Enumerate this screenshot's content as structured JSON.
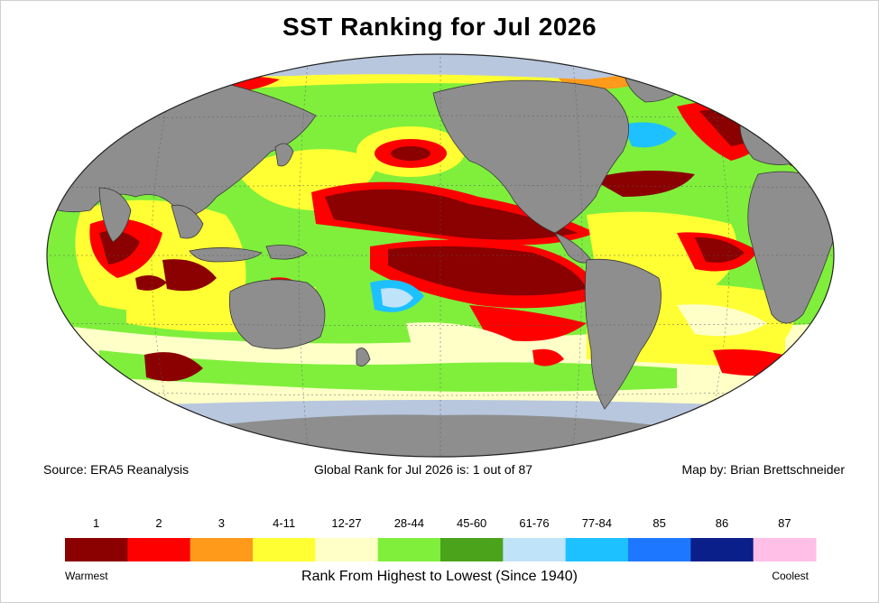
{
  "title": "SST Ranking for Jul 2026",
  "source": "Source: ERA5 Reanalysis",
  "global_rank": "Global Rank for Jul 2026 is: 1 out of 87",
  "credit": "Map by: Brian Brettschneider",
  "legend": {
    "title": "Rank From Highest to Lowest (Since 1940)",
    "low_label": "Warmest",
    "high_label": "Coolest",
    "classes": [
      {
        "label": "1",
        "color": "#8b0000"
      },
      {
        "label": "2",
        "color": "#ff0000"
      },
      {
        "label": "3",
        "color": "#ff9a1a"
      },
      {
        "label": "4-11",
        "color": "#ffff33"
      },
      {
        "label": "12-27",
        "color": "#ffffc8"
      },
      {
        "label": "28-44",
        "color": "#7fef3c"
      },
      {
        "label": "45-60",
        "color": "#4aa31b"
      },
      {
        "label": "61-76",
        "color": "#bfe3f8"
      },
      {
        "label": "77-84",
        "color": "#1ec1ff"
      },
      {
        "label": "85",
        "color": "#1e78ff"
      },
      {
        "label": "86",
        "color": "#0b1f8a"
      },
      {
        "label": "87",
        "color": "#ffbfe6"
      }
    ]
  },
  "map": {
    "projection": "Robinson",
    "land_color": "#8e8e8e",
    "sea_ice_color": "#b8c7de",
    "ocean_background": "#7fef3c"
  }
}
